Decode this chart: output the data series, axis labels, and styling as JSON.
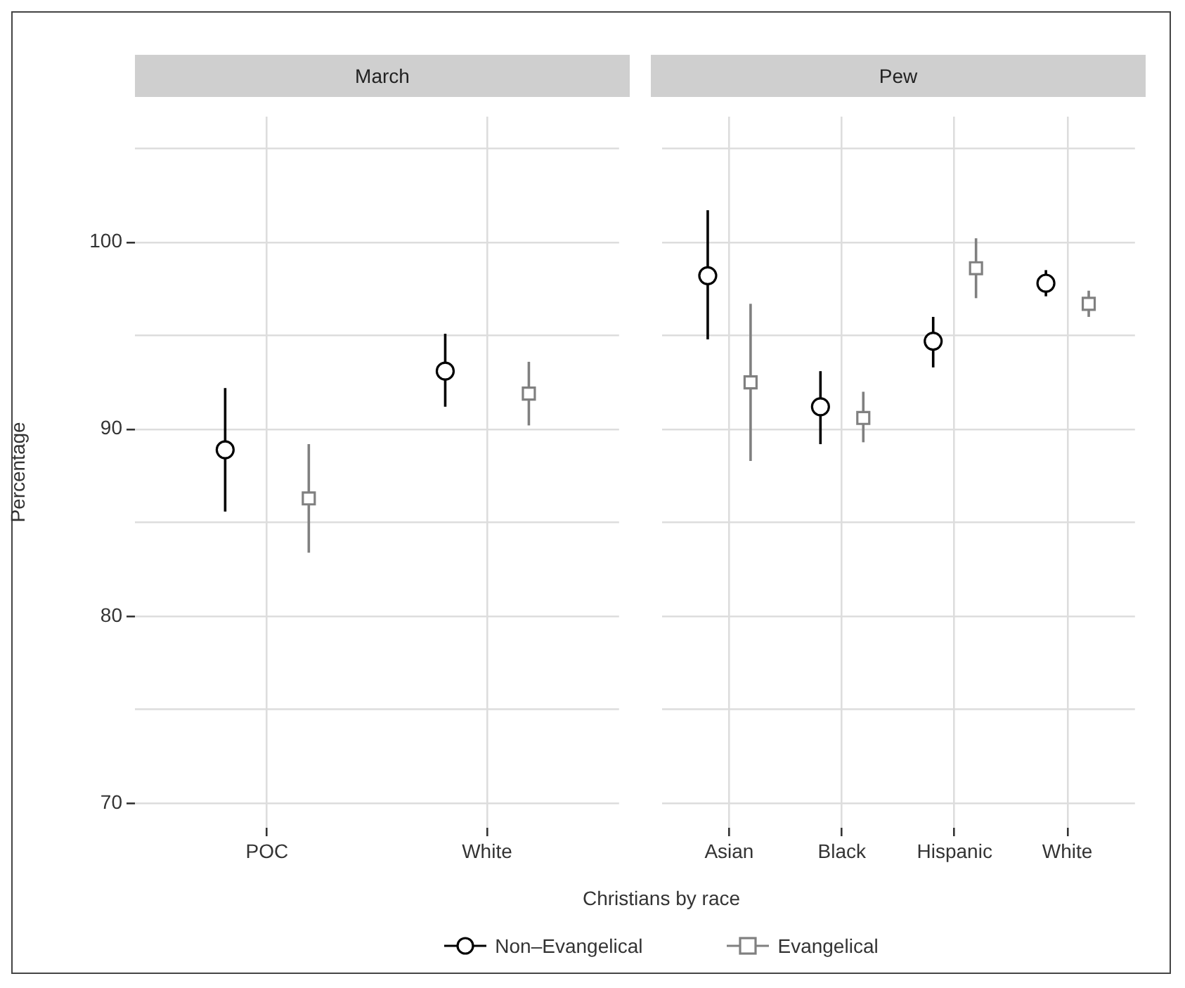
{
  "chart_data": [
    {
      "type": "scatter",
      "title": "March",
      "xlabel": "Christians by race",
      "ylabel": "Percentage",
      "categories": [
        "POC",
        "White"
      ],
      "ylim": [
        68.7,
        106.7
      ],
      "yticks": [
        70,
        {
          "value": 75,
          "label": null
        },
        80,
        {
          "value": 85,
          "label": null
        },
        90,
        {
          "value": 95,
          "label": null
        },
        100,
        {
          "value": 105,
          "label": null
        }
      ],
      "grid": true,
      "legend": "bottom",
      "series": [
        {
          "name": "Non–Evangelical",
          "color": "#000000",
          "marker": "circle",
          "values": [
            88.9,
            93.1
          ],
          "errors": [
            [
              85.6,
              92.2
            ],
            [
              91.2,
              95.1
            ]
          ]
        },
        {
          "name": "Evangelical",
          "color": "#808080",
          "marker": "square",
          "values": [
            86.3,
            91.9
          ],
          "errors": [
            [
              83.4,
              89.2
            ],
            [
              90.2,
              93.6
            ]
          ]
        }
      ]
    },
    {
      "type": "scatter",
      "title": "Pew",
      "categories": [
        "Asian",
        "Black",
        "Hispanic",
        "White"
      ],
      "ylim": [
        68.7,
        106.7
      ],
      "yticks": [
        70,
        {
          "value": 75,
          "label": null
        },
        80,
        {
          "value": 85,
          "label": null
        },
        90,
        {
          "value": 95,
          "label": null
        },
        100,
        {
          "value": 105,
          "label": null
        }
      ],
      "grid": true,
      "tick_labels": "x",
      "series": [
        {
          "name": "Non–Evangelical",
          "color": "#000000",
          "marker": "circle",
          "values": [
            98.2,
            91.2,
            94.7,
            97.8
          ],
          "errors": [
            [
              94.8,
              101.7
            ],
            [
              89.2,
              93.1
            ],
            [
              93.3,
              96.0
            ],
            [
              97.1,
              98.5
            ]
          ]
        },
        {
          "name": "Evangelical",
          "color": "#808080",
          "marker": "square",
          "values": [
            92.5,
            90.6,
            98.6,
            96.7
          ],
          "errors": [
            [
              88.3,
              96.7
            ],
            [
              89.3,
              92.0
            ],
            [
              97.0,
              100.2
            ],
            [
              96.0,
              97.4
            ]
          ]
        }
      ]
    }
  ]
}
